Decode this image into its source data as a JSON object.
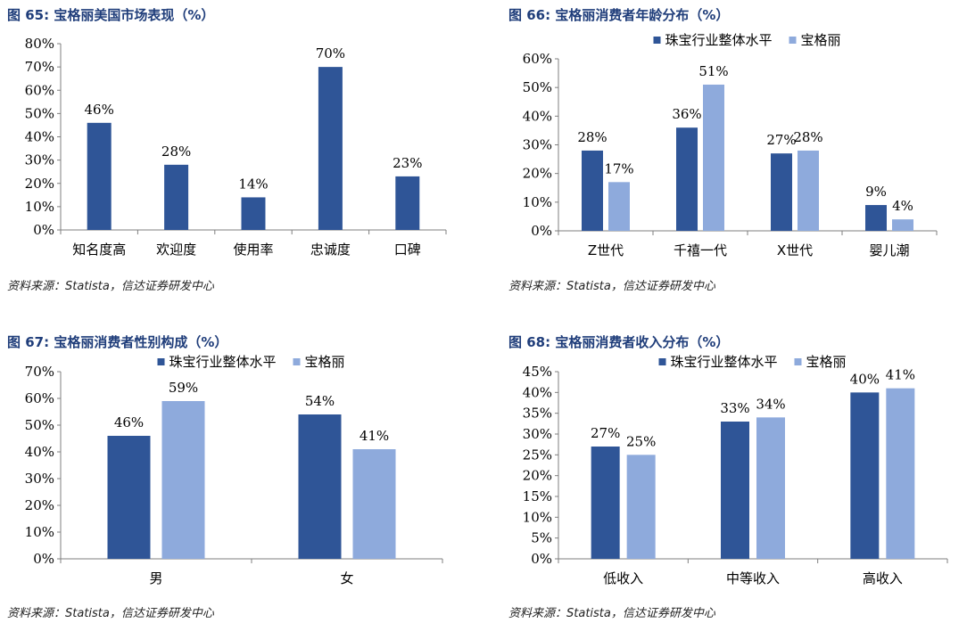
{
  "colors": {
    "primary": "#2f5597",
    "secondary": "#8eaadc",
    "title": "#1f3d7a",
    "axis": "#7f7f7f"
  },
  "charts": [
    {
      "title": "图 65: 宝格丽美国市场表现（%）",
      "source": "资料来源：Statista，信达证券研发中心",
      "chart_data": {
        "type": "bar",
        "categories": [
          "知名度高",
          "欢迎度",
          "使用率",
          "忠诚度",
          "口碑"
        ],
        "series": [
          {
            "values": [
              46,
              28,
              14,
              70,
              23
            ],
            "labels": [
              "46%",
              "28%",
              "14%",
              "70%",
              "23%"
            ]
          }
        ],
        "ylim": [
          0,
          80
        ],
        "yticks": [
          0,
          10,
          20,
          30,
          40,
          50,
          60,
          70,
          80
        ],
        "ytick_labels": [
          "0%",
          "10%",
          "20%",
          "30%",
          "40%",
          "50%",
          "60%",
          "70%",
          "80%"
        ],
        "legend": null,
        "grid": false
      }
    },
    {
      "title": "图 66: 宝格丽消费者年龄分布（%）",
      "source": "资料来源：Statista，信达证券研发中心",
      "chart_data": {
        "type": "bar",
        "categories": [
          "Z世代",
          "千禧一代",
          "X世代",
          "婴儿潮"
        ],
        "series": [
          {
            "name": "珠宝行业整体水平",
            "values": [
              28,
              36,
              27,
              9
            ],
            "labels": [
              "28%",
              "36%",
              "27%",
              "9%"
            ]
          },
          {
            "name": "宝格丽",
            "values": [
              17,
              51,
              28,
              4
            ],
            "labels": [
              "17%",
              "51%",
              "28%",
              "4%"
            ]
          }
        ],
        "ylim": [
          0,
          60
        ],
        "yticks": [
          0,
          10,
          20,
          30,
          40,
          50,
          60
        ],
        "ytick_labels": [
          "0%",
          "10%",
          "20%",
          "30%",
          "40%",
          "50%",
          "60%"
        ],
        "legend": "top-center",
        "grid": false
      }
    },
    {
      "title": "图 67: 宝格丽消费者性别构成（%）",
      "source": "资料来源：Statista，信达证券研发中心",
      "chart_data": {
        "type": "bar",
        "categories": [
          "男",
          "女"
        ],
        "series": [
          {
            "name": "珠宝行业整体水平",
            "values": [
              46,
              54
            ],
            "labels": [
              "46%",
              "54%"
            ]
          },
          {
            "name": "宝格丽",
            "values": [
              59,
              41
            ],
            "labels": [
              "59%",
              "41%"
            ]
          }
        ],
        "ylim": [
          0,
          70
        ],
        "yticks": [
          0,
          10,
          20,
          30,
          40,
          50,
          60,
          70
        ],
        "ytick_labels": [
          "0%",
          "10%",
          "20%",
          "30%",
          "40%",
          "50%",
          "60%",
          "70%"
        ],
        "legend": "top-center",
        "grid": false
      }
    },
    {
      "title": "图 68: 宝格丽消费者收入分布（%）",
      "source": "资料来源：Statista，信达证券研发中心",
      "chart_data": {
        "type": "bar",
        "categories": [
          "低收入",
          "中等收入",
          "高收入"
        ],
        "series": [
          {
            "name": "珠宝行业整体水平",
            "values": [
              27,
              33,
              40
            ],
            "labels": [
              "27%",
              "33%",
              "40%"
            ]
          },
          {
            "name": "宝格丽",
            "values": [
              25,
              34,
              41
            ],
            "labels": [
              "25%",
              "34%",
              "41%"
            ]
          }
        ],
        "ylim": [
          0,
          45
        ],
        "yticks": [
          0,
          5,
          10,
          15,
          20,
          25,
          30,
          35,
          40,
          45
        ],
        "ytick_labels": [
          "0%",
          "5%",
          "10%",
          "15%",
          "20%",
          "25%",
          "30%",
          "35%",
          "40%",
          "45%"
        ],
        "legend": "top-center",
        "grid": false
      }
    }
  ]
}
